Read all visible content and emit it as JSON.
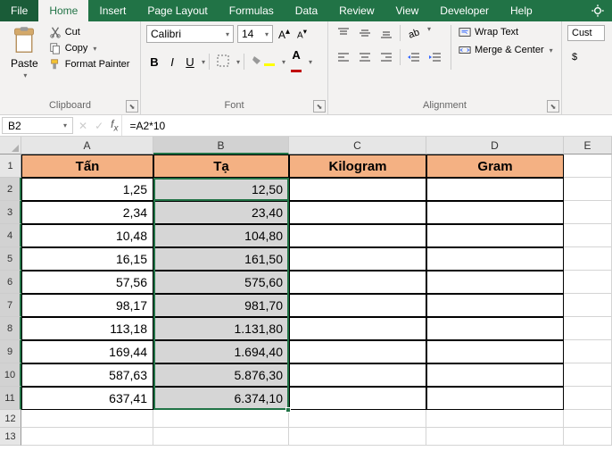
{
  "tabs": {
    "file": "File",
    "home": "Home",
    "insert": "Insert",
    "pagelayout": "Page Layout",
    "formulas": "Formulas",
    "data": "Data",
    "review": "Review",
    "view": "View",
    "developer": "Developer",
    "help": "Help"
  },
  "ribbon": {
    "clipboard": {
      "paste": "Paste",
      "cut": "Cut",
      "copy": "Copy",
      "formatPainter": "Format Painter",
      "label": "Clipboard"
    },
    "font": {
      "name": "Calibri",
      "size": "14",
      "label": "Font"
    },
    "alignment": {
      "wrap": "Wrap Text",
      "merge": "Merge & Center",
      "label": "Alignment"
    },
    "number": {
      "format": "Cust"
    }
  },
  "nameBox": "B2",
  "formula": "=A2*10",
  "columns": [
    "A",
    "B",
    "C",
    "D",
    "E"
  ],
  "headerRow": [
    "Tấn",
    "Tạ",
    "Kilogram",
    "Gram"
  ],
  "dataRows": [
    [
      "1,25",
      "12,50",
      "",
      ""
    ],
    [
      "2,34",
      "23,40",
      "",
      ""
    ],
    [
      "10,48",
      "104,80",
      "",
      ""
    ],
    [
      "16,15",
      "161,50",
      "",
      ""
    ],
    [
      "57,56",
      "575,60",
      "",
      ""
    ],
    [
      "98,17",
      "981,70",
      "",
      ""
    ],
    [
      "113,18",
      "1.131,80",
      "",
      ""
    ],
    [
      "169,44",
      "1.694,40",
      "",
      ""
    ],
    [
      "587,63",
      "5.876,30",
      "",
      ""
    ],
    [
      "637,41",
      "6.374,10",
      "",
      ""
    ]
  ],
  "colors": {
    "accent": "#217346",
    "headerFill": "#f4b183",
    "selFill": "#d6d6d6",
    "gridBorder": "#d4d4d4",
    "fontColor": "#c00000",
    "fillColor": "#ffff00"
  }
}
